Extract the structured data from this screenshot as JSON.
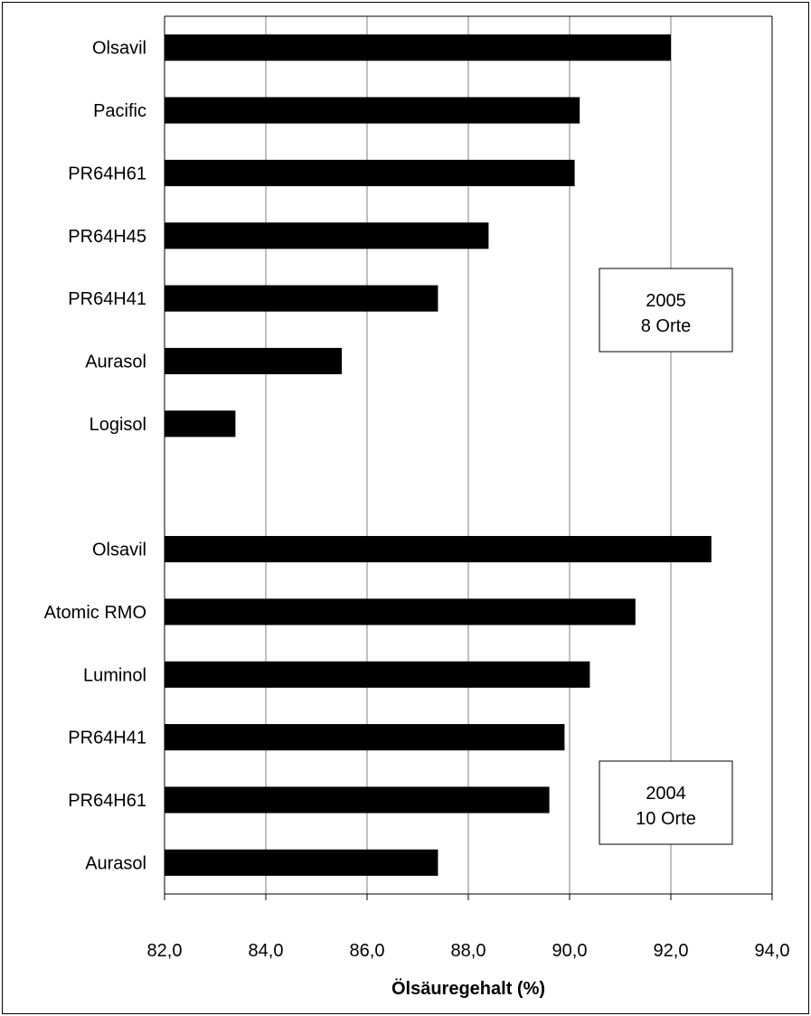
{
  "chart_data": {
    "type": "bar",
    "orientation": "horizontal",
    "xlabel": "Ölsäuregehalt (%)",
    "xlim": [
      82,
      94
    ],
    "xticks": [
      "82,0",
      "84,0",
      "86,0",
      "88,0",
      "90,0",
      "92,0",
      "94,0"
    ],
    "grid": "vertical",
    "groups": [
      {
        "annotation": [
          "2005",
          "8 Orte"
        ],
        "categories": [
          "Olsavil",
          "Pacific",
          "PR64H61",
          "PR64H45",
          "PR64H41",
          "Aurasol",
          "Logisol"
        ],
        "values": [
          92.0,
          90.2,
          90.1,
          88.4,
          87.4,
          85.5,
          83.4
        ]
      },
      {
        "annotation": [
          "2004",
          "10 Orte"
        ],
        "categories": [
          "Olsavil",
          "Atomic RMO",
          "Luminol",
          "PR64H41",
          "PR64H61",
          "Aurasol"
        ],
        "values": [
          92.8,
          91.3,
          90.4,
          89.9,
          89.6,
          87.4
        ]
      }
    ],
    "colors": {
      "bar": "#000000",
      "grid": "#808080",
      "axis": "#000000"
    }
  }
}
